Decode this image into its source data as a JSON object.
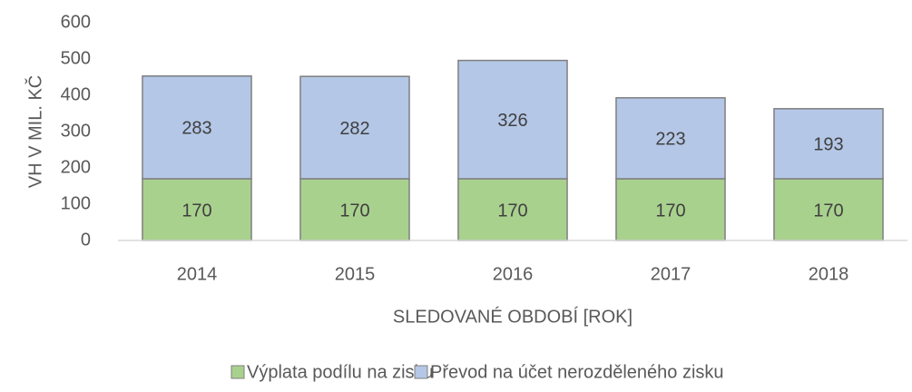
{
  "chart_data": {
    "type": "stacked_bar",
    "categories": [
      "2014",
      "2015",
      "2016",
      "2017",
      "2018"
    ],
    "series": [
      {
        "name": "Výplata podílu na zisku",
        "color": "#a9d18e",
        "values": [
          170,
          170,
          170,
          170,
          170
        ]
      },
      {
        "name": "Převod na účet nerozděleného zisku",
        "color": "#b4c7e7",
        "values": [
          283,
          282,
          326,
          223,
          193
        ]
      }
    ],
    "ylim": [
      0,
      600
    ],
    "yticks": [
      0,
      100,
      200,
      300,
      400,
      500,
      600
    ],
    "ylabel": "VH V MIL. KČ",
    "xlabel": "SLEDOVANÉ OBDOBÍ [ROK]",
    "grid": false,
    "legend": "bottom"
  }
}
